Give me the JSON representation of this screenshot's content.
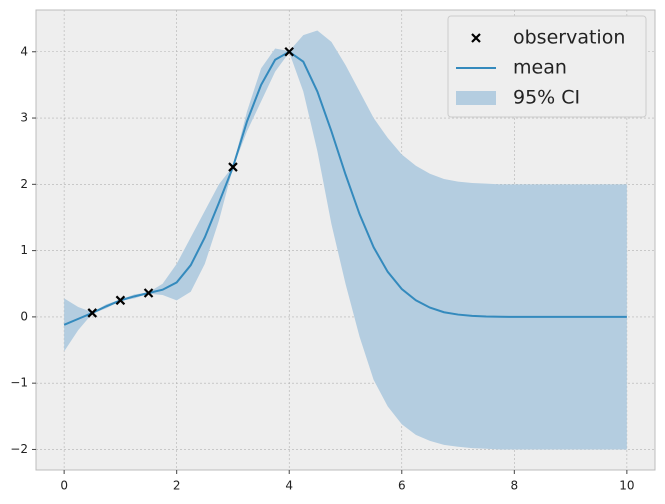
{
  "chart_data": {
    "type": "gp",
    "xlim": [
      -0.5,
      10.5
    ],
    "ylim": [
      -2.31,
      4.63
    ],
    "xticks": [
      0,
      2,
      4,
      6,
      8,
      10
    ],
    "yticks": [
      {
        "value": -2,
        "label": "−2"
      },
      {
        "value": -1,
        "label": "−1"
      },
      0,
      1,
      2,
      3,
      4
    ],
    "grid": true,
    "legend": "upper right",
    "x": [
      0,
      0.25,
      0.5,
      0.75,
      1,
      1.25,
      1.5,
      1.75,
      2,
      2.25,
      2.5,
      2.75,
      3,
      3.25,
      3.5,
      3.75,
      4,
      4.25,
      4.5,
      4.75,
      5,
      5.25,
      5.5,
      5.75,
      6,
      6.25,
      6.5,
      6.75,
      7,
      7.25,
      7.5,
      7.75,
      8,
      8.25,
      8.5,
      8.75,
      9,
      9.25,
      9.5,
      9.75,
      10
    ],
    "series": [
      {
        "name": "observation",
        "type": "scatter",
        "color": "#000000",
        "x": [
          0.5,
          1,
          1.5,
          3,
          4
        ],
        "values": [
          0.06,
          0.25,
          0.36,
          2.26,
          4.0
        ]
      },
      {
        "name": "mean",
        "type": "line",
        "color": "#348abd",
        "values": [
          -0.12,
          -0.03,
          0.06,
          0.16,
          0.25,
          0.31,
          0.36,
          0.41,
          0.52,
          0.78,
          1.2,
          1.72,
          2.26,
          2.95,
          3.5,
          3.88,
          4.0,
          3.85,
          3.4,
          2.8,
          2.15,
          1.55,
          1.05,
          0.68,
          0.42,
          0.25,
          0.14,
          0.07,
          0.035,
          0.015,
          0.006,
          0.002,
          0,
          0,
          0,
          0,
          0,
          0,
          0,
          0,
          0
        ]
      },
      {
        "name": "95% CI",
        "type": "band",
        "color": "#b4cde0",
        "upper": [
          0.28,
          0.15,
          0.07,
          0.19,
          0.26,
          0.34,
          0.37,
          0.5,
          0.8,
          1.2,
          1.6,
          2.0,
          2.27,
          3.1,
          3.75,
          4.05,
          4.01,
          4.25,
          4.32,
          4.15,
          3.8,
          3.4,
          3.0,
          2.7,
          2.45,
          2.28,
          2.16,
          2.08,
          2.04,
          2.02,
          2.01,
          2.0,
          2.0,
          2.0,
          2.0,
          2.0,
          2.0,
          2.0,
          2.0,
          2.0,
          2.0
        ],
        "lower": [
          -0.52,
          -0.2,
          0.05,
          0.13,
          0.24,
          0.28,
          0.35,
          0.33,
          0.25,
          0.38,
          0.8,
          1.45,
          2.25,
          2.8,
          3.25,
          3.7,
          3.99,
          3.4,
          2.5,
          1.4,
          0.5,
          -0.3,
          -0.95,
          -1.35,
          -1.62,
          -1.78,
          -1.87,
          -1.93,
          -1.96,
          -1.98,
          -1.99,
          -2.0,
          -2.0,
          -2.0,
          -2.0,
          -2.0,
          -2.0,
          -2.0,
          -2.0,
          -2.0,
          -2.0
        ]
      }
    ]
  }
}
